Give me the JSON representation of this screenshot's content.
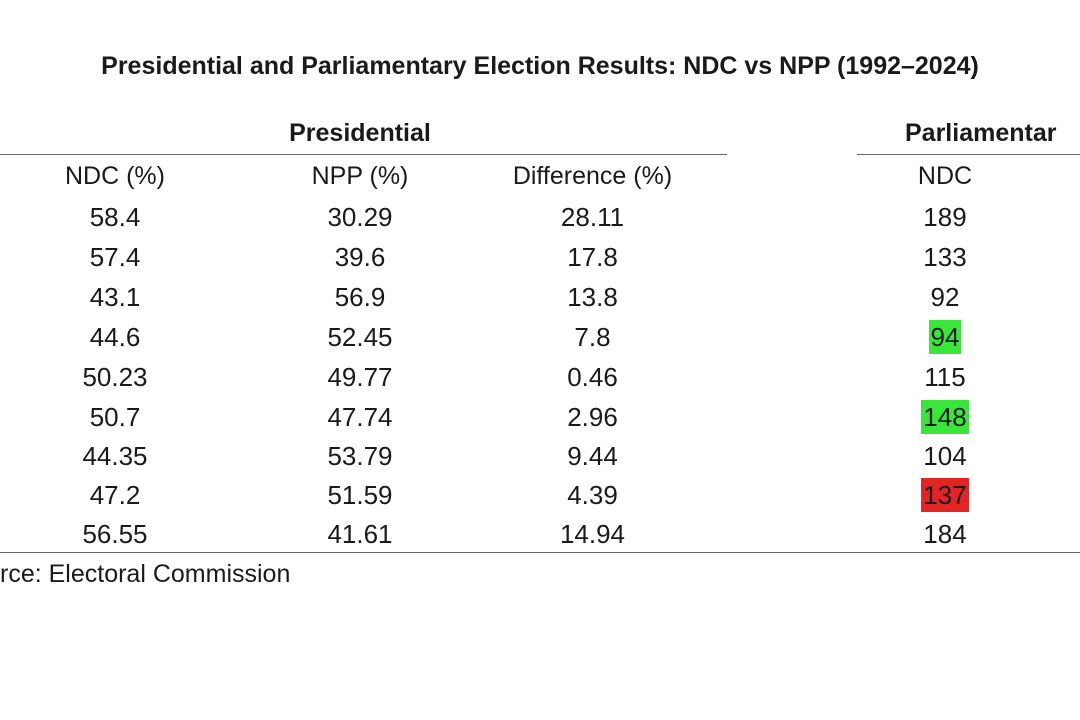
{
  "title": "Presidential and Parliamentary Election Results: NDC vs NPP (1992–2024)",
  "groups": {
    "presidential": "Presidential",
    "parliamentary": "Parliamentar"
  },
  "columns": {
    "ndc_pct": "NDC (%)",
    "npp_pct": "NPP (%)",
    "difference_pct": "Difference (%)",
    "parl_ndc": "NDC"
  },
  "rows": [
    {
      "ndc": "58.4",
      "npp": "30.29",
      "diff": "28.11",
      "parl_ndc": "189",
      "highlight": ""
    },
    {
      "ndc": "57.4",
      "npp": "39.6",
      "diff": "17.8",
      "parl_ndc": "133",
      "highlight": ""
    },
    {
      "ndc": "43.1",
      "npp": "56.9",
      "diff": "13.8",
      "parl_ndc": "92",
      "highlight": ""
    },
    {
      "ndc": "44.6",
      "npp": "52.45",
      "diff": "7.8",
      "parl_ndc": "94",
      "highlight": "#39e639"
    },
    {
      "ndc": "50.23",
      "npp": "49.77",
      "diff": "0.46",
      "parl_ndc": "115",
      "highlight": ""
    },
    {
      "ndc": "50.7",
      "npp": "47.74",
      "diff": "2.96",
      "parl_ndc": "148",
      "highlight": "#39e639"
    },
    {
      "ndc": "44.35",
      "npp": "53.79",
      "diff": "9.44",
      "parl_ndc": "104",
      "highlight": ""
    },
    {
      "ndc": "47.2",
      "npp": "51.59",
      "diff": "4.39",
      "parl_ndc": "137",
      "highlight": "#e22424"
    },
    {
      "ndc": "56.55",
      "npp": "41.61",
      "diff": "14.94",
      "parl_ndc": "184",
      "highlight": ""
    }
  ],
  "source": "rce: Electoral Commission"
}
